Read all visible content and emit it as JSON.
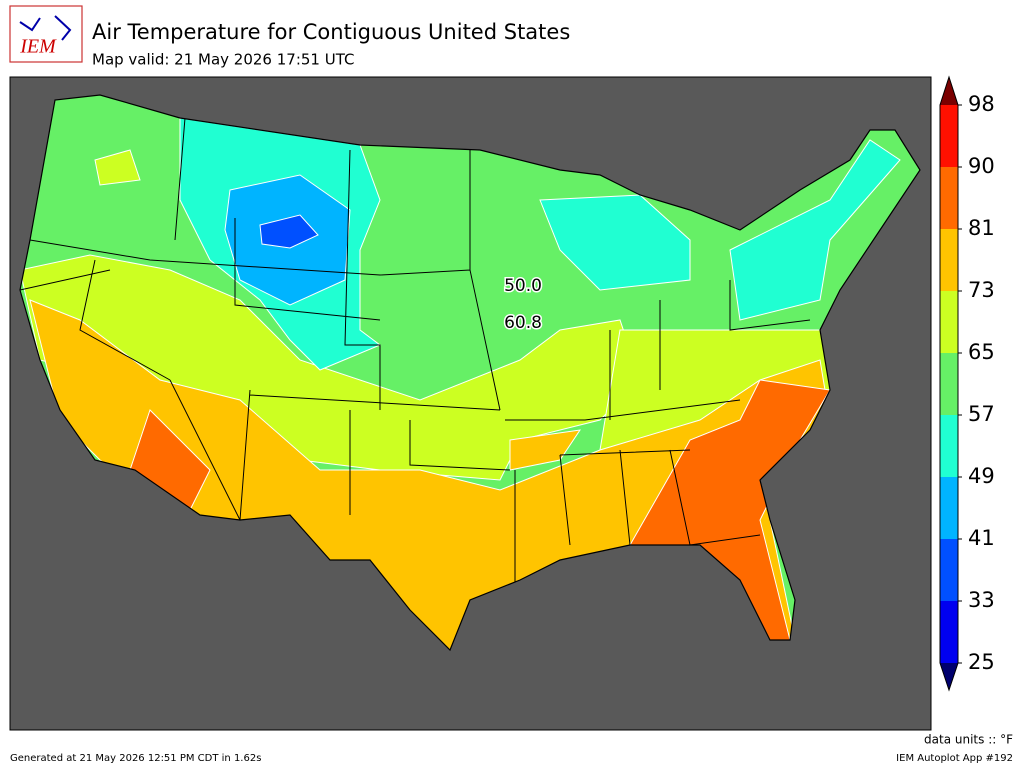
{
  "header": {
    "logo_text": "IEM",
    "title": "Air Temperature for Contiguous United States",
    "subtitle": "Map valid: 21 May 2026 17:51 UTC"
  },
  "map": {
    "labels": [
      "50.0",
      "60.8"
    ]
  },
  "colorbar": {
    "ticks": [
      25,
      33,
      41,
      49,
      57,
      65,
      73,
      81,
      90,
      98
    ],
    "colors": [
      "#00006e",
      "#0000f0",
      "#0050ff",
      "#00b4ff",
      "#20ffd2",
      "#66f066",
      "#ccff22",
      "#ffc400",
      "#ff6a00",
      "#ff1000",
      "#7a0000"
    ],
    "units": "data units :: °F"
  },
  "footer": {
    "generated": "Generated at 21 May 2026 12:51 PM CDT in 1.62s",
    "app": "IEM Autoplot App #192"
  }
}
